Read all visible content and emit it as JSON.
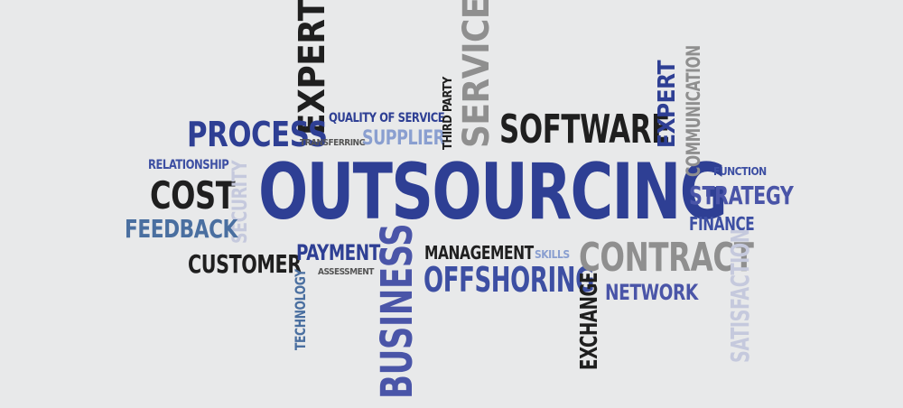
{
  "cloud": {
    "words": {
      "outsourcing": "OUTSOURCING",
      "expertise": "EXPERTISE",
      "process": "PROCESS",
      "quality_of_service": "QUALITY OF SERVICE",
      "transferring": "TRANSFERRING",
      "supplier": "SUPPLIER",
      "third_party": "THIRD PARTY",
      "services": "SERVICES",
      "software": "SOFTWARE",
      "expert": "EXPERT",
      "communication": "COMMUNICATION",
      "function": "FUNCTION",
      "strategy": "STRATEGY",
      "finance": "FINANCE",
      "relationship": "RELATIONSHIP",
      "cost": "COST",
      "security": "SECURITY",
      "feedback": "FEEDBACK",
      "customer": "CUSTOMER",
      "payment": "PAYMENT",
      "assessment": "ASSESSMENT",
      "technology": "TECHNOLOGY",
      "business": "BUSINESS",
      "management": "MANAGEMENT",
      "skills": "SKILLS",
      "offshoring": "OFFSHORING",
      "contract": "CONTRACT",
      "exchange": "EXCHANGE",
      "network": "NETWORK",
      "satisfaction": "SATISFACTION"
    },
    "colors": {
      "background": "#e8e9ea",
      "navy": "#2e3f94",
      "blue": "#3d4fa3",
      "steel": "#4a6fa0",
      "dark": "#1f1f1f",
      "gray": "#8f8f8f",
      "light": "#c5c9dd"
    }
  }
}
